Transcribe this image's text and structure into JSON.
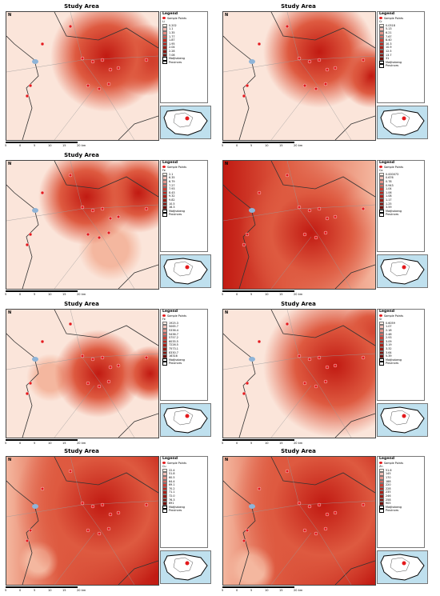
{
  "colors": {
    "base": "#fbe5da",
    "light": "#f4b79f",
    "mid": "#de5a40",
    "dark": "#c11a12",
    "point": "#e41a1c"
  },
  "panels": [
    {
      "title": "Study Area",
      "legend": {
        "title": "Legend",
        "points": "Sample Points",
        "variable": "Li",
        "values": [
          "0.202",
          "1.1",
          "1.35",
          "1.77",
          "1.87",
          "1.95",
          "2.04",
          "2.28",
          "7.08"
        ],
        "muni": "Matjhabeng",
        "prov": "Provinces"
      }
    },
    {
      "title": "Study Area",
      "legend": {
        "title": "Legend",
        "points": "Sample Points",
        "variable": "Cr",
        "values": [
          "0.0318",
          "5.13",
          "6.21",
          "7.67",
          "8.40",
          "10.3",
          "10.9",
          "12.5",
          "13.7",
          "31"
        ],
        "muni": "Matjhabeng",
        "prov": "Provinces"
      }
    },
    {
      "title": "Study Area",
      "legend": {
        "title": "Legend",
        "points": "Sample Points",
        "variable": "Fe",
        "values": [
          "2.1",
          "6.35",
          "6.79",
          "7.27",
          "7.93",
          "8.43",
          "9.32",
          "9.82",
          "10.5",
          "16.3"
        ],
        "muni": "Matjhabeng",
        "prov": "Provinces"
      }
    },
    {
      "title": "",
      "legend": {
        "title": "Legend",
        "points": "Sample Points",
        "variable": "Co",
        "values": [
          "0.000073",
          "0.676",
          "0.78",
          "0.943",
          "1.04",
          "1.06",
          "1.08",
          "1.17",
          "1.25",
          "3.59"
        ],
        "muni": "Matjhabeng",
        "prov": "Provinces"
      }
    },
    {
      "title": "Study Area",
      "legend": {
        "title": "Legend",
        "points": "Sample Points",
        "variable": "Fe",
        "values": [
          "1925.3",
          "5065.7",
          "5336.4",
          "5436.7",
          "5757.2",
          "6035.5",
          "7226.5",
          "7573.1",
          "8330.7",
          "16316"
        ],
        "muni": "Matjhabeng",
        "prov": "Provinces"
      }
    },
    {
      "title": "Study Area",
      "legend": {
        "title": "Legend",
        "points": "Sample Points",
        "variable": "Sr",
        "values": [
          "0.6059",
          "1.07",
          "2.18",
          "2.48",
          "2.93",
          "3.09",
          "3.19",
          "3.32",
          "3.64",
          "5.39"
        ],
        "muni": "Matjhabeng",
        "prov": "Provinces"
      }
    },
    {
      "title": "Study Area",
      "legend": {
        "title": "Legend",
        "points": "Sample Points",
        "variable": "Cu",
        "values": [
          "22.4",
          "51.8",
          "60.5",
          "64.4",
          "69.1",
          "70.2",
          "71.1",
          "72.0",
          "76.3",
          "691"
        ],
        "muni": "Matjhabeng",
        "prov": "Provinces"
      }
    },
    {
      "title": "Study Area",
      "legend": {
        "title": "Legend",
        "points": "Sample Points",
        "variable": "Zn",
        "values": [
          "51.6",
          "145",
          "170",
          "188",
          "220",
          "228",
          "235",
          "246",
          "258",
          "905"
        ],
        "muni": "Matjhabeng",
        "prov": "Provinces"
      }
    }
  ],
  "scale_labels": [
    "5",
    "0",
    "5",
    "10",
    "15",
    "20 km"
  ],
  "north": "N"
}
